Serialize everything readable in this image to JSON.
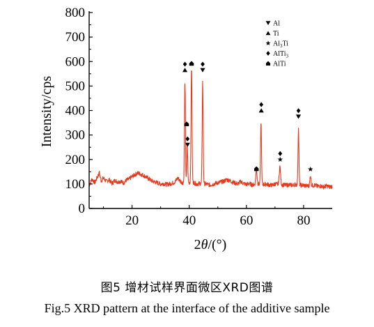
{
  "chart_data": {
    "type": "line",
    "title": "",
    "xlabel_prefix": "2",
    "xlabel_theta": "θ",
    "xlabel_suffix": "/(°)",
    "ylabel": "Intensity/cps",
    "xlim": [
      5,
      90
    ],
    "ylim": [
      0,
      800
    ],
    "xticks": [
      20,
      40,
      60,
      80
    ],
    "yticks": [
      0,
      100,
      200,
      300,
      400,
      500,
      600,
      700,
      800
    ],
    "grid": false,
    "line_color": "#e8391d",
    "baseline_points": [
      [
        5,
        95
      ],
      [
        6,
        120
      ],
      [
        7,
        105
      ],
      [
        8,
        132
      ],
      [
        8.6,
        145
      ],
      [
        9.2,
        112
      ],
      [
        10,
        125
      ],
      [
        11,
        110
      ],
      [
        12,
        118
      ],
      [
        13,
        102
      ],
      [
        14,
        115
      ],
      [
        15,
        108
      ],
      [
        16,
        112
      ],
      [
        17,
        104
      ],
      [
        18,
        115
      ],
      [
        19,
        120
      ],
      [
        20,
        130
      ],
      [
        21,
        138
      ],
      [
        22,
        145
      ],
      [
        23,
        140
      ],
      [
        24,
        135
      ],
      [
        25,
        128
      ],
      [
        26,
        120
      ],
      [
        27,
        112
      ],
      [
        28,
        108
      ],
      [
        29,
        104
      ],
      [
        30,
        100
      ],
      [
        31,
        102
      ],
      [
        32,
        98
      ],
      [
        33,
        100
      ],
      [
        34,
        103
      ],
      [
        35,
        108
      ],
      [
        36,
        125
      ],
      [
        37,
        110
      ],
      [
        37.8,
        105
      ],
      [
        41.6,
        106
      ],
      [
        42.5,
        100
      ],
      [
        43.5,
        102
      ],
      [
        46,
        100
      ],
      [
        47,
        96
      ],
      [
        48,
        98
      ],
      [
        49,
        102
      ],
      [
        50,
        105
      ],
      [
        51,
        108
      ],
      [
        52,
        110
      ],
      [
        53,
        118
      ],
      [
        54,
        115
      ],
      [
        55,
        108
      ],
      [
        56,
        104
      ],
      [
        57,
        100
      ],
      [
        58,
        110
      ],
      [
        59,
        102
      ],
      [
        60,
        98
      ],
      [
        61,
        102
      ],
      [
        62,
        96
      ],
      [
        63.5,
        100
      ],
      [
        66,
        98
      ],
      [
        67,
        100
      ],
      [
        68,
        96
      ],
      [
        69,
        95
      ],
      [
        70,
        100
      ],
      [
        73,
        96
      ],
      [
        74,
        95
      ],
      [
        75,
        97
      ],
      [
        76,
        95
      ],
      [
        77,
        98
      ],
      [
        79,
        95
      ],
      [
        80,
        95
      ],
      [
        81,
        92
      ],
      [
        83,
        94
      ],
      [
        84,
        95
      ],
      [
        85,
        90
      ],
      [
        86,
        92
      ],
      [
        87,
        88
      ],
      [
        88,
        92
      ],
      [
        89,
        88
      ],
      [
        90,
        90
      ]
    ],
    "peaks": [
      {
        "x": 38.5,
        "y": 520,
        "width": 0.35
      },
      {
        "x": 39.3,
        "y": 255,
        "width": 0.35
      },
      {
        "x": 40.8,
        "y": 580,
        "width": 0.35
      },
      {
        "x": 44.7,
        "y": 520,
        "width": 0.35
      },
      {
        "x": 63.5,
        "y": 160,
        "width": 0.45
      },
      {
        "x": 65.1,
        "y": 355,
        "width": 0.35
      },
      {
        "x": 71.7,
        "y": 170,
        "width": 0.5
      },
      {
        "x": 78.2,
        "y": 325,
        "width": 0.35
      },
      {
        "x": 82.4,
        "y": 135,
        "width": 0.4
      }
    ],
    "peak_markers": [
      {
        "x": 38.5,
        "y": 565,
        "symbols": [
          "diamond",
          "up"
        ]
      },
      {
        "x": 39.1,
        "y": 345,
        "symbols": [
          "house"
        ]
      },
      {
        "x": 39.4,
        "y": 260,
        "symbols": [
          "diamond",
          "down"
        ]
      },
      {
        "x": 40.8,
        "y": 592,
        "symbols": [
          "house"
        ]
      },
      {
        "x": 44.7,
        "y": 565,
        "symbols": [
          "diamond",
          "down"
        ]
      },
      {
        "x": 63.5,
        "y": 162,
        "symbols": [
          "house"
        ]
      },
      {
        "x": 65.2,
        "y": 400,
        "symbols": [
          "diamond",
          "up"
        ]
      },
      {
        "x": 71.8,
        "y": 200,
        "symbols": [
          "diamond",
          "star"
        ]
      },
      {
        "x": 78.2,
        "y": 375,
        "symbols": [
          "diamond",
          "down"
        ]
      },
      {
        "x": 82.4,
        "y": 160,
        "symbols": [
          "star"
        ]
      }
    ],
    "legend": {
      "placement": "top-right",
      "entries": [
        {
          "symbol": "down",
          "label": "Al",
          "sub": "",
          "label_after": ""
        },
        {
          "symbol": "up",
          "label": "Ti",
          "sub": "",
          "label_after": ""
        },
        {
          "symbol": "star",
          "label": "Al",
          "sub": "3",
          "label_after": "Ti"
        },
        {
          "symbol": "diamond",
          "label": "AlTi",
          "sub": "3",
          "label_after": ""
        },
        {
          "symbol": "house",
          "label": "AlTi",
          "sub": "",
          "label_after": ""
        }
      ]
    }
  },
  "caption": {
    "cn": "图5  增材试样界面微区XRD图谱",
    "en": "Fig.5  XRD pattern at the interface of the additive sample"
  }
}
